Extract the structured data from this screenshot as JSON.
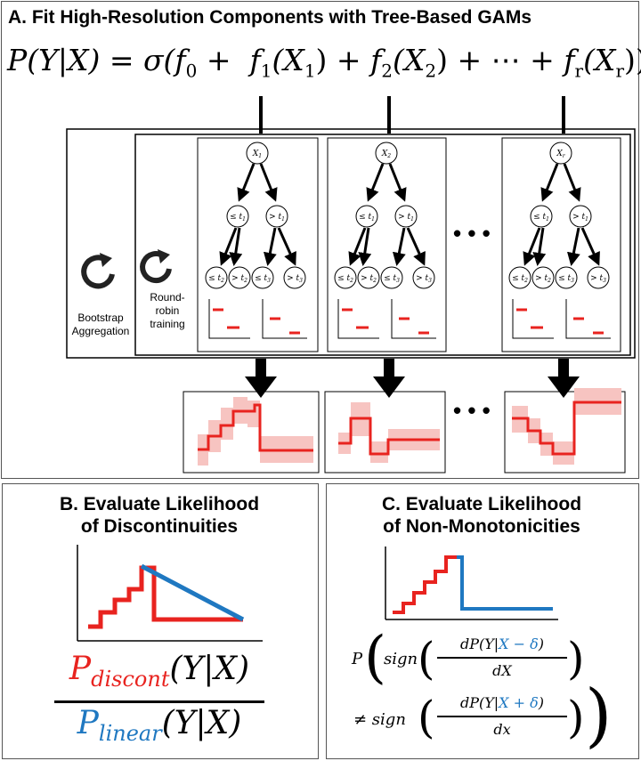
{
  "panel_a": {
    "title": "A. Fit High-Resolution Components with Tree-Based GAMs",
    "equation": {
      "lhs": "P(Y|X) = σ(",
      "f0": "f",
      "f0_sub": "0",
      "plus": " + ",
      "f1": "f",
      "f1_sub": "1",
      "x1": "(X",
      "x1_sub": "1",
      "f2": "f",
      "f2_sub": "2",
      "x2": "(X",
      "x2_sub": "2",
      "dots": "+ ⋯ +",
      "fr": "f",
      "fr_sub": "r",
      "xr": "(X",
      "xr_sub": "r",
      "close": "))"
    },
    "bootstrap_label": "Bootstrap\nAggregation",
    "roundrobin_label": "Round-\nrobin\ntraining",
    "tree_roots": [
      "X1",
      "X2",
      "Xr"
    ],
    "tree_root_text": "X",
    "tree_root_subs": [
      "1",
      "2",
      "r"
    ],
    "node_le_t1": "≤ t",
    "node_gt_t1": "> t",
    "sub1": "1",
    "sub2": "2",
    "sub3": "3",
    "ellipsis": "• • •"
  },
  "panel_b": {
    "title_line1": "B. Evaluate Likelihood",
    "title_line2": "of Discontinuities",
    "num_p": "P",
    "num_sub": "discont",
    "num_rest": "(Y|X)",
    "den_p": "P",
    "den_sub": "linear",
    "den_rest": "(Y|X)"
  },
  "panel_c": {
    "title_line1": "C. Evaluate Likelihood",
    "title_line2": "of Non-Monotonicities",
    "p": "P",
    "sign1": "sign",
    "num1_a": "dP(Y|",
    "num1_b": "X − δ",
    "num1_c": ")",
    "den1": "dX",
    "neq": "≠ sign",
    "num2_a": "dP(Y|",
    "num2_b": "X + δ",
    "num2_c": ")",
    "den2": "dx"
  },
  "colors": {
    "red": "#e8231f",
    "blue": "#1f78c1",
    "band": "#f7c4c1"
  }
}
